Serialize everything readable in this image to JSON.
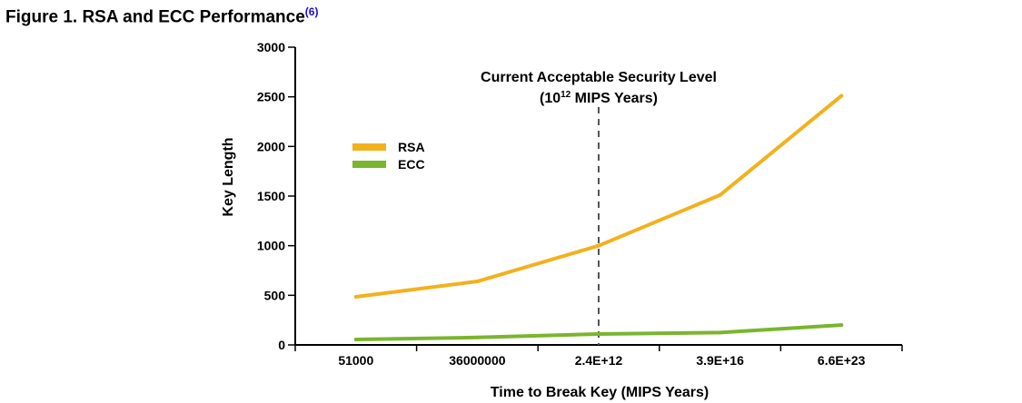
{
  "figure": {
    "caption": "Figure 1.  RSA and ECC Performance",
    "ref_open": "(",
    "ref_number": "6",
    "ref_close": ")"
  },
  "chart_data": {
    "type": "line",
    "title": "",
    "xlabel": "Time to Break Key (MIPS Years)",
    "ylabel": "Key Length",
    "categories": [
      "51000",
      "36000000",
      "2.4E+12",
      "3.9E+16",
      "6.6E+23"
    ],
    "ylim": [
      0,
      3000
    ],
    "yticks": [
      0,
      500,
      1000,
      1500,
      2000,
      2500,
      3000
    ],
    "grid": false,
    "legend_position": "left",
    "series": [
      {
        "name": "RSA",
        "color": "#f2b11d",
        "values": [
          485,
          640,
          1000,
          1510,
          2510
        ]
      },
      {
        "name": "ECC",
        "color": "#7ab52e",
        "values": [
          55,
          75,
          110,
          125,
          200
        ]
      }
    ],
    "annotation": {
      "line1": "Current Acceptable Security Level",
      "line2_prefix": "(10",
      "line2_exponent": "12",
      "line2_suffix": " MIPS Years)",
      "at_category": "2.4E+12",
      "line_style": "dashed",
      "line_color": "#555555"
    }
  }
}
